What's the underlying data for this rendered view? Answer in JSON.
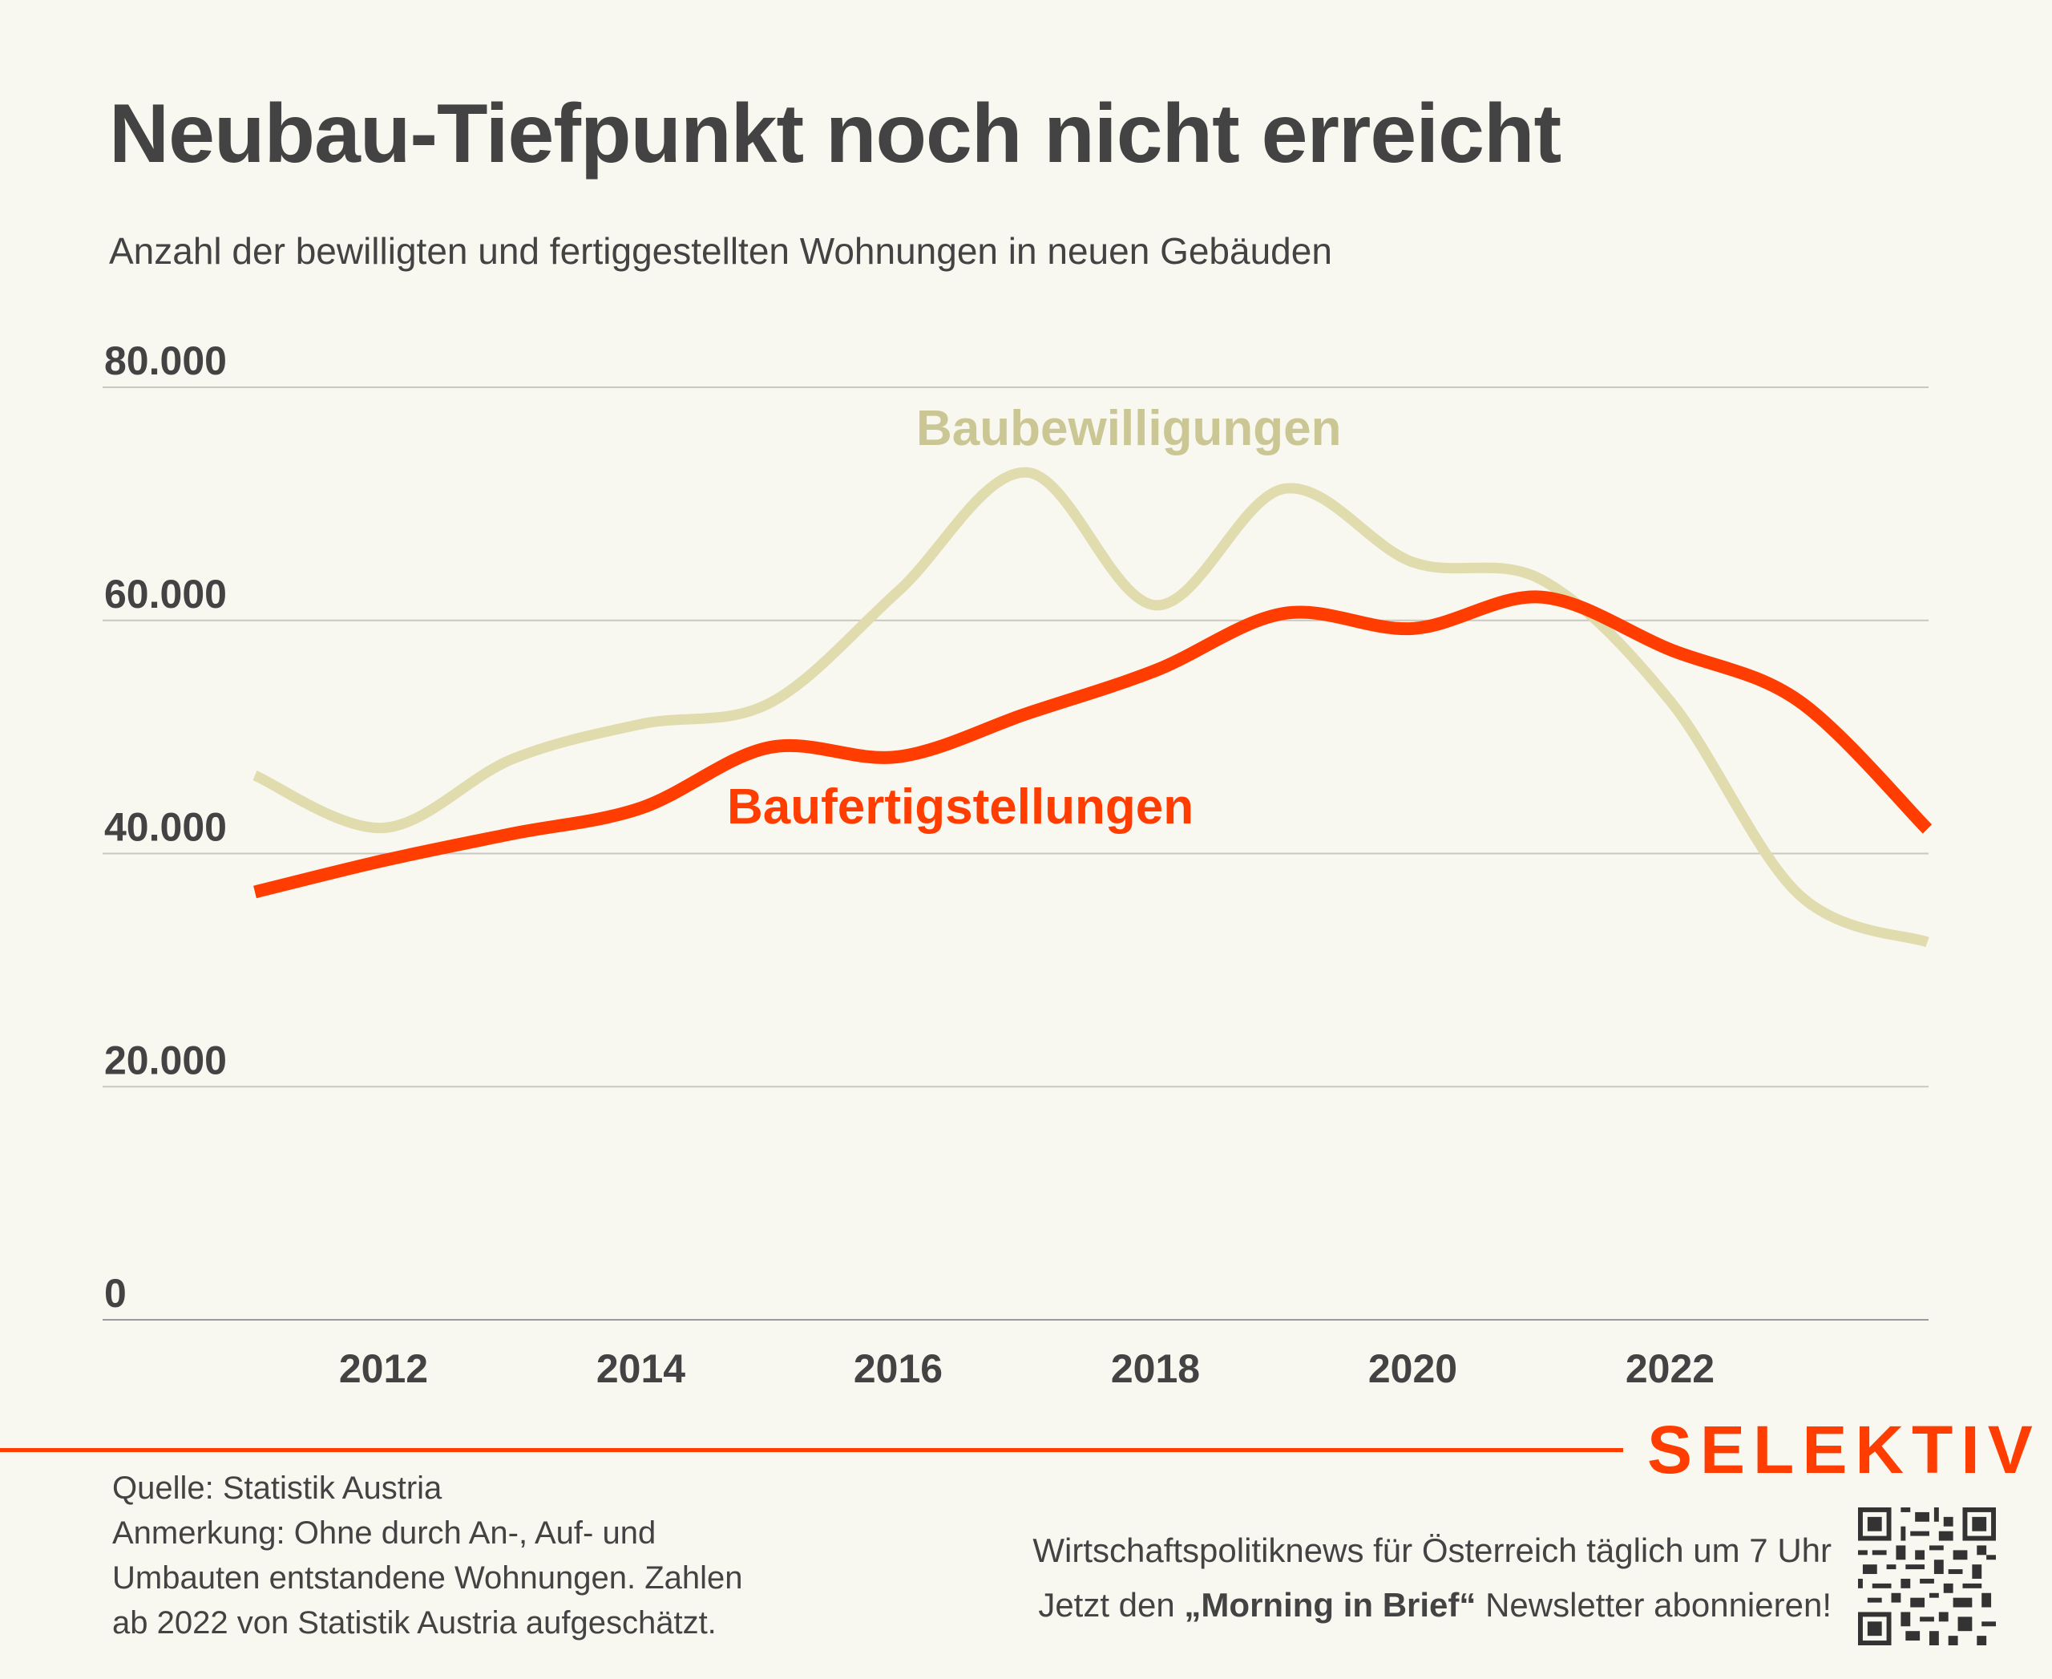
{
  "header": {
    "title": "Neubau-Tiefpunkt noch nicht erreicht",
    "subtitle": "Anzahl der bewilligten und fertiggestellten Wohnungen in neuen Gebäuden"
  },
  "chart_data": {
    "type": "line",
    "title": "Neubau-Tiefpunkt noch nicht erreicht",
    "subtitle": "Anzahl der bewilligten und fertiggestellten Wohnungen in neuen Gebäuden",
    "xlabel": "",
    "ylabel": "",
    "x": [
      2011,
      2012,
      2013,
      2014,
      2015,
      2016,
      2017,
      2018,
      2019,
      2020,
      2021,
      2022,
      2023,
      2024
    ],
    "xticks": [
      "2012",
      "2014",
      "2016",
      "2018",
      "2020",
      "2022"
    ],
    "xtick_values": [
      2012,
      2014,
      2016,
      2018,
      2020,
      2022
    ],
    "yticks": [
      "0",
      "20.000",
      "40.000",
      "60.000",
      "80.000"
    ],
    "ytick_values": [
      0,
      20000,
      40000,
      60000,
      80000
    ],
    "ylim": [
      0,
      80000
    ],
    "xlim": [
      2010,
      2024
    ],
    "grid": true,
    "legend": "inline labels",
    "series": [
      {
        "name": "Baubewilligungen",
        "color": "#e0dcad",
        "label_color": "#cbc794",
        "values": [
          46700,
          42200,
          48100,
          51100,
          52900,
          62500,
          72700,
          61300,
          71300,
          65000,
          63500,
          53100,
          36500,
          32400
        ]
      },
      {
        "name": "Baufertigstellungen",
        "color": "#ff3d00",
        "label_color": "#ff3d00",
        "values": [
          36700,
          39400,
          41700,
          43900,
          49100,
          48300,
          52000,
          55700,
          60600,
          59300,
          62000,
          57500,
          53100,
          42100
        ]
      }
    ]
  },
  "footer": {
    "brand": "SELEKTIV",
    "source": "Quelle: Statistik Austria",
    "note_lines": [
      "Anmerkung: Ohne durch An-, Auf- und",
      "Umbauten entstandene Wohnungen. Zahlen",
      "ab 2022 von Statistik Austria aufgeschätzt."
    ],
    "promo_line1": "Wirtschaftspolitiknews für Österreich täglich um 7 Uhr",
    "promo_line2_pre": "Jetzt den ",
    "promo_line2_bold": "„Morning in Brief“",
    "promo_line2_post": " Newsletter abonnieren!",
    "qr_icon": "qr-code-icon"
  }
}
